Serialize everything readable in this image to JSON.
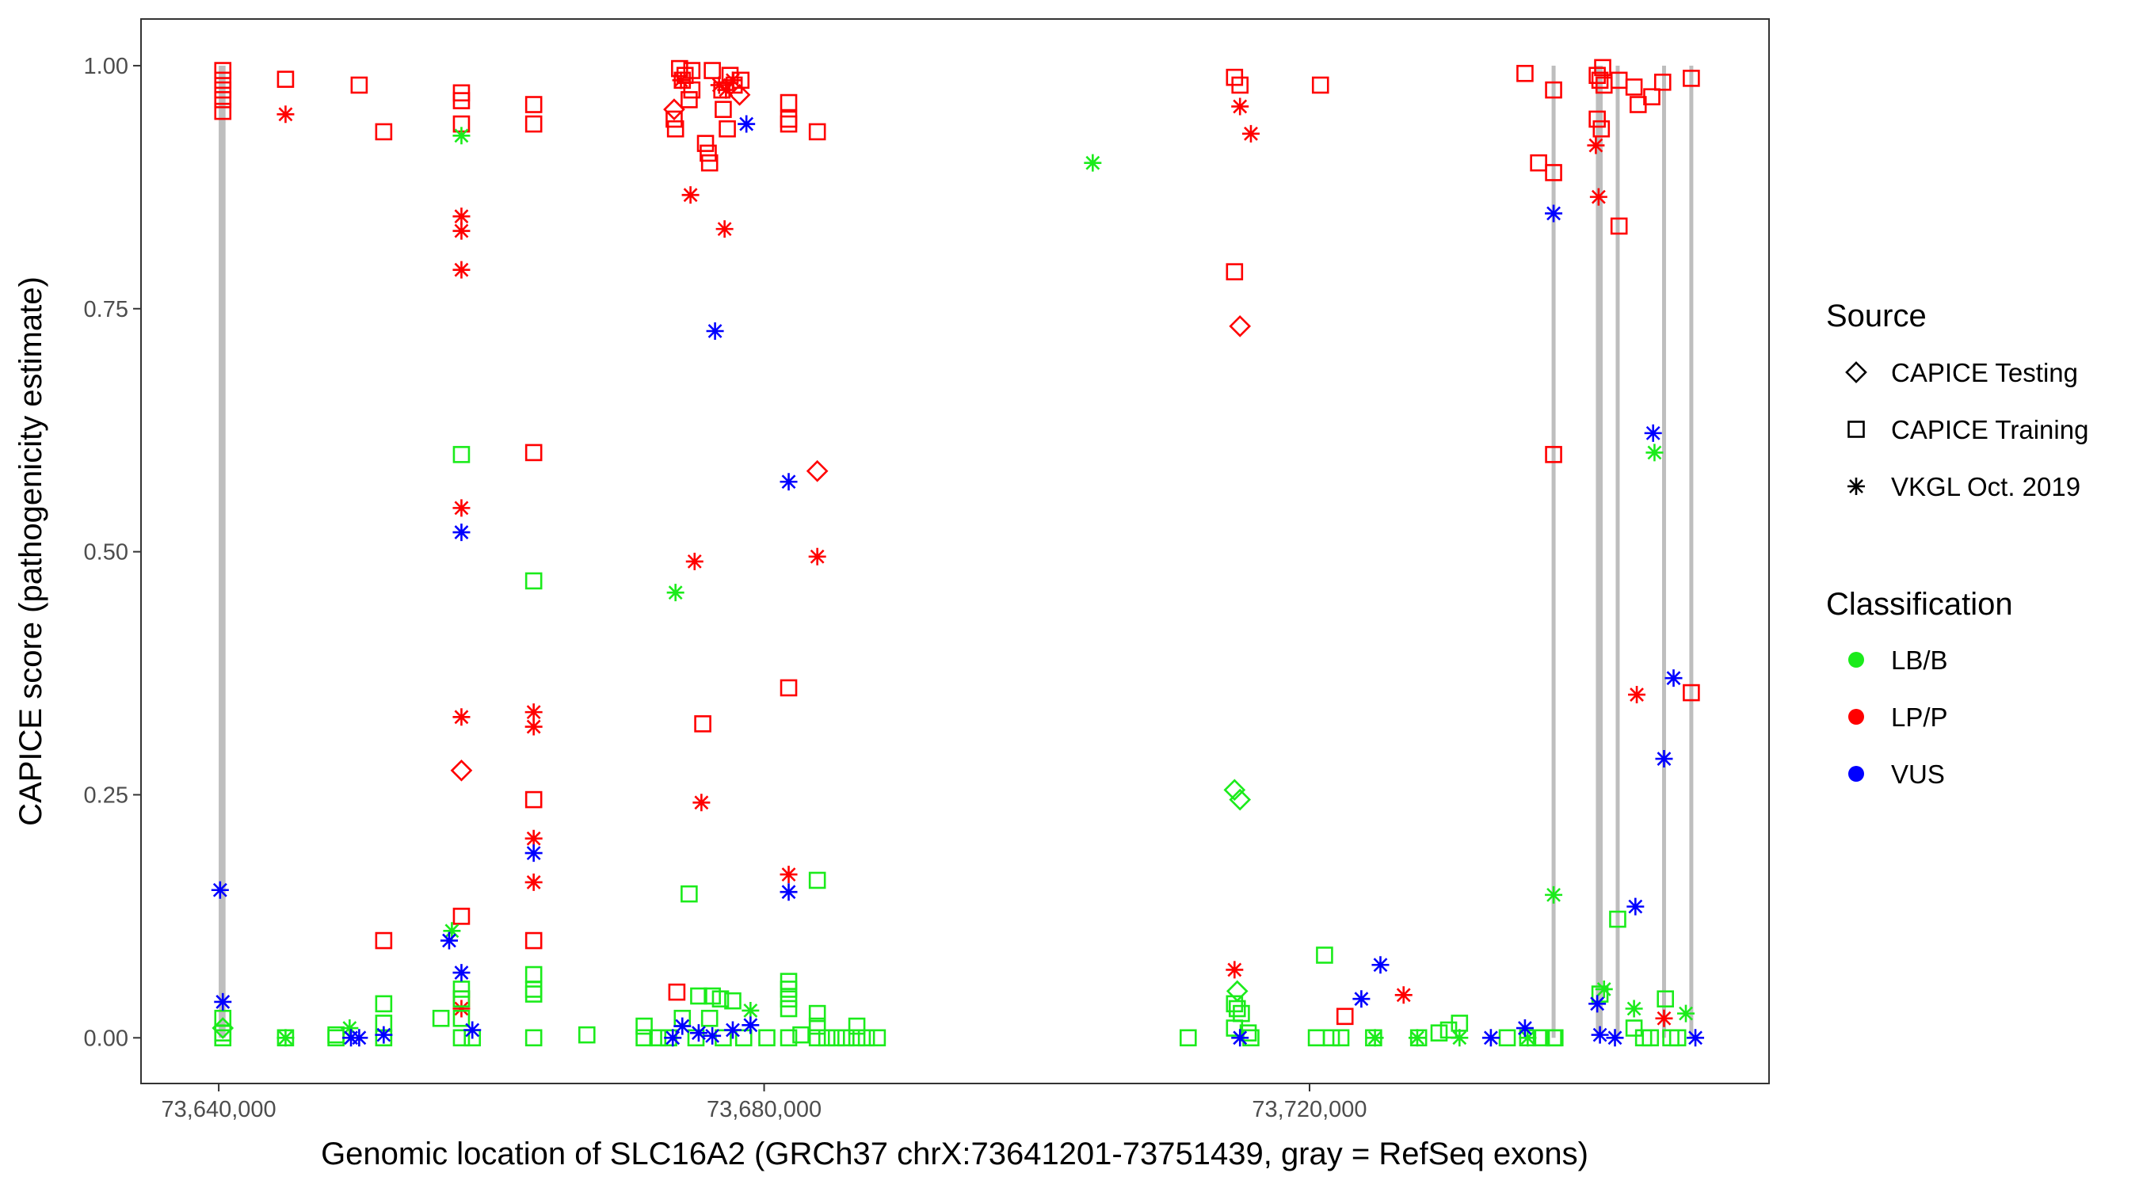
{
  "chart_data": {
    "type": "scatter",
    "title": "",
    "xlabel": "Genomic location of SLC16A2 (GRCh37 chrX:73641201-73751439, gray = RefSeq exons)",
    "ylabel": "CAPICE score (pathogenicity estimate)",
    "xlim": [
      73634300,
      73753700
    ],
    "ylim": [
      -0.047,
      1.048
    ],
    "x_ticks": [
      73640000,
      73680000,
      73720000
    ],
    "x_tick_labels": [
      "73,640,000",
      "73,680,000",
      "73,720,000"
    ],
    "y_ticks": [
      0,
      0.25,
      0.5,
      0.75,
      1.0
    ],
    "y_tick_labels": [
      "0.00",
      "0.25",
      "0.50",
      "0.75",
      "1.00"
    ],
    "grid": false,
    "legend_placement": "right",
    "exon_color": "#BEBEBE",
    "exons": [
      [
        73640000,
        73640500
      ],
      [
        73737800,
        73738000
      ],
      [
        73741000,
        73741500
      ],
      [
        73742500,
        73742700
      ],
      [
        73745900,
        73746100
      ],
      [
        73747900,
        73748100
      ]
    ],
    "legend": {
      "source_title": "Source",
      "sources": [
        {
          "label": "CAPICE Testing",
          "shape": "diamond"
        },
        {
          "label": "CAPICE Training",
          "shape": "square"
        },
        {
          "label": "VKGL Oct. 2019",
          "shape": "asterisk"
        }
      ],
      "class_title": "Classification",
      "classes": [
        {
          "label": "LB/B",
          "color": "#1BEB1B"
        },
        {
          "label": "LP/P",
          "color": "#FF0000"
        },
        {
          "label": "VUS",
          "color": "#0000FF"
        }
      ]
    },
    "series": [
      {
        "source": "CAPICE Training",
        "class": "LP/P",
        "points": [
          [
            73640300,
            0.995
          ],
          [
            73640300,
            0.985
          ],
          [
            73640300,
            0.975
          ],
          [
            73640300,
            0.965
          ],
          [
            73640300,
            0.953
          ],
          [
            73644900,
            0.986
          ],
          [
            73650300,
            0.98
          ],
          [
            73652100,
            0.932
          ],
          [
            73652100,
            0.1
          ],
          [
            73657800,
            0.972
          ],
          [
            73657800,
            0.964
          ],
          [
            73657800,
            0.94
          ],
          [
            73657800,
            0.125
          ],
          [
            73657800,
            0.04
          ],
          [
            73663100,
            0.96
          ],
          [
            73663100,
            0.94
          ],
          [
            73663100,
            0.602
          ],
          [
            73663100,
            0.245
          ],
          [
            73663100,
            0.1
          ],
          [
            73673800,
            0.997
          ],
          [
            73674200,
            0.99
          ],
          [
            73674700,
            0.995
          ],
          [
            73673400,
            0.945
          ],
          [
            73673500,
            0.935
          ],
          [
            73674000,
            0.985
          ],
          [
            73674500,
            0.965
          ],
          [
            73674700,
            0.975
          ],
          [
            73675700,
            0.92
          ],
          [
            73675900,
            0.91
          ],
          [
            73676000,
            0.9
          ],
          [
            73676900,
            0.975
          ],
          [
            73677000,
            0.955
          ],
          [
            73677300,
            0.935
          ],
          [
            73677500,
            0.99
          ],
          [
            73677800,
            0.98
          ],
          [
            73678300,
            0.985
          ],
          [
            73676200,
            0.995
          ],
          [
            73675500,
            0.323
          ],
          [
            73673600,
            0.047
          ],
          [
            73681800,
            0.962
          ],
          [
            73681800,
            0.945
          ],
          [
            73681800,
            0.94
          ],
          [
            73681800,
            0.36
          ],
          [
            73683900,
            0.932
          ],
          [
            73714500,
            0.988
          ],
          [
            73714900,
            0.98
          ],
          [
            73714500,
            0.788
          ],
          [
            73720800,
            0.98
          ],
          [
            73722600,
            0.022
          ],
          [
            73735800,
            0.992
          ],
          [
            73736800,
            0.9
          ],
          [
            73737900,
            0.975
          ],
          [
            73737900,
            0.89
          ],
          [
            73737900,
            0.6
          ],
          [
            73741100,
            0.99
          ],
          [
            73741300,
            0.985
          ],
          [
            73741600,
            0.98
          ],
          [
            73741500,
            0.998
          ],
          [
            73741100,
            0.945
          ],
          [
            73741400,
            0.935
          ],
          [
            73742700,
            0.985
          ],
          [
            73742700,
            0.835
          ],
          [
            73743800,
            0.978
          ],
          [
            73744100,
            0.96
          ],
          [
            73745100,
            0.968
          ],
          [
            73745900,
            0.983
          ],
          [
            73748000,
            0.987
          ],
          [
            73748000,
            0.355
          ]
        ]
      },
      {
        "source": "VKGL Oct. 2019",
        "class": "LP/P",
        "points": [
          [
            73644900,
            0.95
          ],
          [
            73657800,
            0.845
          ],
          [
            73657800,
            0.83
          ],
          [
            73657800,
            0.79
          ],
          [
            73657800,
            0.545
          ],
          [
            73657800,
            0.33
          ],
          [
            73657800,
            0.03
          ],
          [
            73663100,
            0.335
          ],
          [
            73663100,
            0.32
          ],
          [
            73663100,
            0.205
          ],
          [
            73663100,
            0.16
          ],
          [
            73673900,
            0.985
          ],
          [
            73676700,
            0.98
          ],
          [
            73677200,
            0.975
          ],
          [
            73677700,
            0.985
          ],
          [
            73674600,
            0.867
          ],
          [
            73677100,
            0.832
          ],
          [
            73674900,
            0.49
          ],
          [
            73675400,
            0.242
          ],
          [
            73681800,
            0.168
          ],
          [
            73683900,
            0.495
          ],
          [
            73714900,
            0.958
          ],
          [
            73715700,
            0.93
          ],
          [
            73714500,
            0.07
          ],
          [
            73726900,
            0.044
          ],
          [
            73741000,
            0.918
          ],
          [
            73741200,
            0.865
          ],
          [
            73744000,
            0.353
          ],
          [
            73746000,
            0.02
          ]
        ]
      },
      {
        "source": "CAPICE Testing",
        "class": "LP/P",
        "points": [
          [
            73657800,
            0.275
          ],
          [
            73673400,
            0.955
          ],
          [
            73678200,
            0.97
          ],
          [
            73683900,
            0.583
          ],
          [
            73714900,
            0.732
          ]
        ]
      },
      {
        "source": "CAPICE Training",
        "class": "LB/B",
        "points": [
          [
            73640300,
            0.02
          ],
          [
            73640300,
            0.005
          ],
          [
            73640300,
            0
          ],
          [
            73644900,
            0
          ],
          [
            73648600,
            0.003
          ],
          [
            73648600,
            0
          ],
          [
            73652100,
            0.035
          ],
          [
            73652100,
            0.015
          ],
          [
            73652100,
            0
          ],
          [
            73657800,
            0.6
          ],
          [
            73657800,
            0.05
          ],
          [
            73657800,
            0.04
          ],
          [
            73657800,
            0.02
          ],
          [
            73656300,
            0.02
          ],
          [
            73657800,
            0
          ],
          [
            73658600,
            0
          ],
          [
            73663100,
            0.47
          ],
          [
            73663100,
            0.065
          ],
          [
            73663100,
            0.05
          ],
          [
            73663100,
            0.045
          ],
          [
            73663100,
            0
          ],
          [
            73667000,
            0.003
          ],
          [
            73671200,
            0.012
          ],
          [
            73671200,
            0
          ],
          [
            73672200,
            0
          ],
          [
            73674500,
            0.148
          ],
          [
            73675200,
            0.043
          ],
          [
            73676200,
            0.043
          ],
          [
            73676800,
            0.04
          ],
          [
            73677700,
            0.038
          ],
          [
            73674000,
            0.02
          ],
          [
            73676000,
            0.02
          ],
          [
            73673000,
            0
          ],
          [
            73675000,
            0
          ],
          [
            73677000,
            0
          ],
          [
            73678500,
            0
          ],
          [
            73680200,
            0
          ],
          [
            73681800,
            0.058
          ],
          [
            73681800,
            0.05
          ],
          [
            73681800,
            0.04
          ],
          [
            73681800,
            0.03
          ],
          [
            73681800,
            0
          ],
          [
            73682700,
            0.003
          ],
          [
            73683900,
            0.162
          ],
          [
            73683900,
            0.025
          ],
          [
            73683900,
            0.012
          ],
          [
            73683900,
            0
          ],
          [
            73684600,
            0
          ],
          [
            73685300,
            0
          ],
          [
            73686000,
            0
          ],
          [
            73686800,
            0.012
          ],
          [
            73686800,
            0
          ],
          [
            73687500,
            0
          ],
          [
            73688300,
            0
          ],
          [
            73711100,
            0
          ],
          [
            73714500,
            0.035
          ],
          [
            73714700,
            0.03
          ],
          [
            73715000,
            0.025
          ],
          [
            73714500,
            0.01
          ],
          [
            73715500,
            0.005
          ],
          [
            73715700,
            0
          ],
          [
            73720500,
            0
          ],
          [
            73721100,
            0.085
          ],
          [
            73721600,
            0
          ],
          [
            73722300,
            0
          ],
          [
            73724700,
            0
          ],
          [
            73728000,
            0
          ],
          [
            73729500,
            0.005
          ],
          [
            73730200,
            0.008
          ],
          [
            73731000,
            0.015
          ],
          [
            73734500,
            0
          ],
          [
            73736000,
            0
          ],
          [
            73737000,
            0
          ],
          [
            73737900,
            0
          ],
          [
            73738000,
            0
          ],
          [
            73741300,
            0.045
          ],
          [
            73742600,
            0.122
          ],
          [
            73743800,
            0.01
          ],
          [
            73744500,
            0
          ],
          [
            73745000,
            0
          ],
          [
            73746100,
            0.04
          ],
          [
            73746500,
            0
          ],
          [
            73747000,
            0
          ]
        ]
      },
      {
        "source": "VKGL Oct. 2019",
        "class": "LB/B",
        "points": [
          [
            73657800,
            0.928
          ],
          [
            73657100,
            0.11
          ],
          [
            73673500,
            0.458
          ],
          [
            73679000,
            0.028
          ],
          [
            73704100,
            0.9
          ],
          [
            73737900,
            0.147
          ],
          [
            73745300,
            0.602
          ],
          [
            73741600,
            0.05
          ],
          [
            73743800,
            0.03
          ],
          [
            73747600,
            0.025
          ],
          [
            73649600,
            0.01
          ],
          [
            73644900,
            0
          ],
          [
            73724800,
            0
          ],
          [
            73727900,
            0
          ],
          [
            73731000,
            0
          ],
          [
            73736000,
            0
          ]
        ]
      },
      {
        "source": "CAPICE Testing",
        "class": "LB/B",
        "points": [
          [
            73714500,
            0.255
          ],
          [
            73714900,
            0.245
          ],
          [
            73714700,
            0.048
          ],
          [
            73640300,
            0.01
          ]
        ]
      },
      {
        "source": "VKGL Oct. 2019",
        "class": "VUS",
        "points": [
          [
            73640100,
            0.152
          ],
          [
            73640300,
            0.037
          ],
          [
            73656900,
            0.1
          ],
          [
            73657800,
            0.52
          ],
          [
            73657800,
            0.067
          ],
          [
            73658600,
            0.008
          ],
          [
            73663100,
            0.19
          ],
          [
            73678700,
            0.94
          ],
          [
            73676400,
            0.727
          ],
          [
            73681800,
            0.572
          ],
          [
            73681800,
            0.15
          ],
          [
            73723800,
            0.04
          ],
          [
            73725200,
            0.075
          ],
          [
            73737900,
            0.848
          ],
          [
            73745200,
            0.622
          ],
          [
            73746700,
            0.37
          ],
          [
            73746000,
            0.287
          ],
          [
            73743900,
            0.135
          ],
          [
            73741100,
            0.035
          ],
          [
            73735800,
            0.01
          ],
          [
            73733300,
            0
          ],
          [
            73742400,
            0
          ],
          [
            73748300,
            0
          ],
          [
            73714900,
            0
          ],
          [
            73650300,
            0
          ],
          [
            73649700,
            0
          ],
          [
            73652100,
            0.003
          ],
          [
            73674000,
            0.012
          ],
          [
            73675200,
            0.005
          ],
          [
            73676200,
            0.002
          ],
          [
            73677700,
            0.008
          ],
          [
            73679000,
            0.013
          ],
          [
            73673300,
            0
          ],
          [
            73741300,
            0.003
          ]
        ]
      }
    ]
  }
}
